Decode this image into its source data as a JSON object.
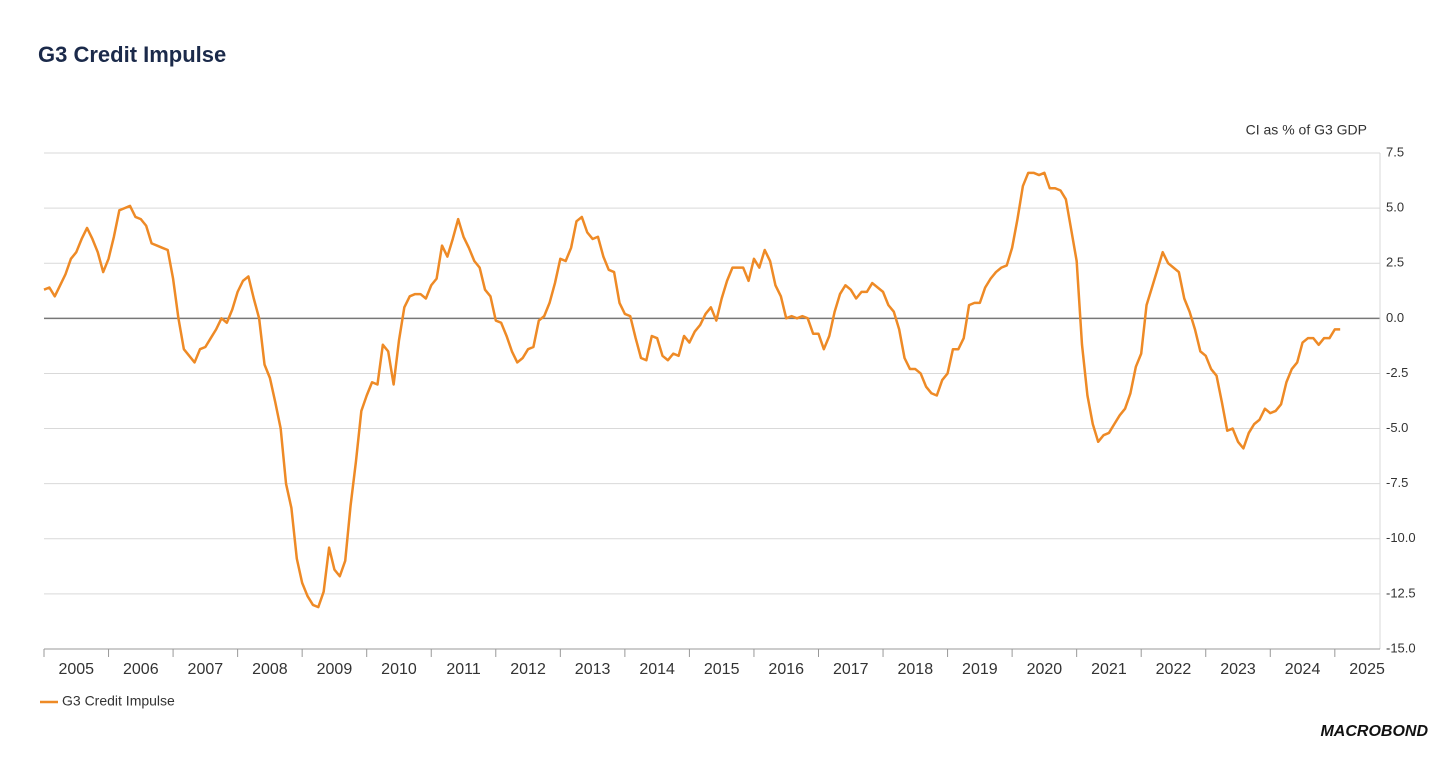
{
  "chart_data": {
    "type": "line",
    "title": "G3 Credit Impulse",
    "y_axis_label": "CI as % of G3 GDP",
    "brand": "MACROBOND",
    "xlim": [
      2005,
      2025.7
    ],
    "ylim": [
      -15,
      7.5
    ],
    "yticks": [
      7.5,
      {
        "value": 5,
        "label": "5.0"
      },
      2.5,
      {
        "value": 0,
        "label": "0.0"
      },
      -2.5,
      {
        "value": -5,
        "label": "-5.0"
      },
      -7.5,
      {
        "value": -10,
        "label": "-10.0"
      },
      -12.5,
      {
        "value": -15,
        "label": "-15.0"
      }
    ],
    "xticks": [
      {
        "value": 2005.5,
        "label": "2005"
      },
      {
        "value": 2006.5,
        "label": "2006"
      },
      {
        "value": 2007.5,
        "label": "2007"
      },
      {
        "value": 2008.5,
        "label": "2008"
      },
      {
        "value": 2009.5,
        "label": "2009"
      },
      {
        "value": 2010.5,
        "label": "2010"
      },
      {
        "value": 2011.5,
        "label": "2011"
      },
      {
        "value": 2012.5,
        "label": "2012"
      },
      {
        "value": 2013.5,
        "label": "2013"
      },
      {
        "value": 2014.5,
        "label": "2014"
      },
      {
        "value": 2015.5,
        "label": "2015"
      },
      {
        "value": 2016.5,
        "label": "2016"
      },
      {
        "value": 2017.5,
        "label": "2017"
      },
      {
        "value": 2018.5,
        "label": "2018"
      },
      {
        "value": 2019.5,
        "label": "2019"
      },
      {
        "value": 2020.5,
        "label": "2020"
      },
      {
        "value": 2021.5,
        "label": "2021"
      },
      {
        "value": 2022.5,
        "label": "2022"
      },
      {
        "value": 2023.5,
        "label": "2023"
      },
      {
        "value": 2024.5,
        "label": "2024"
      },
      {
        "value": 2025.5,
        "label": "2025"
      }
    ],
    "grid": true,
    "legend": "bottom-left",
    "x": [
      2005,
      2005.083,
      2005.167,
      2005.25,
      2005.333,
      2005.417,
      2005.5,
      2005.583,
      2005.667,
      2005.75,
      2005.833,
      2005.917,
      2006,
      2006.083,
      2006.167,
      2006.25,
      2006.333,
      2006.417,
      2006.5,
      2006.583,
      2006.667,
      2006.75,
      2006.833,
      2006.917,
      2007,
      2007.083,
      2007.167,
      2007.25,
      2007.333,
      2007.417,
      2007.5,
      2007.583,
      2007.667,
      2007.75,
      2007.833,
      2007.917,
      2008,
      2008.083,
      2008.167,
      2008.25,
      2008.333,
      2008.417,
      2008.5,
      2008.583,
      2008.667,
      2008.75,
      2008.833,
      2008.917,
      2009,
      2009.083,
      2009.167,
      2009.25,
      2009.333,
      2009.417,
      2009.5,
      2009.583,
      2009.667,
      2009.75,
      2009.833,
      2009.917,
      2010,
      2010.083,
      2010.167,
      2010.25,
      2010.333,
      2010.417,
      2010.5,
      2010.583,
      2010.667,
      2010.75,
      2010.833,
      2010.917,
      2011,
      2011.083,
      2011.167,
      2011.25,
      2011.333,
      2011.417,
      2011.5,
      2011.583,
      2011.667,
      2011.75,
      2011.833,
      2011.917,
      2012,
      2012.083,
      2012.167,
      2012.25,
      2012.333,
      2012.417,
      2012.5,
      2012.583,
      2012.667,
      2012.75,
      2012.833,
      2012.917,
      2013,
      2013.083,
      2013.167,
      2013.25,
      2013.333,
      2013.417,
      2013.5,
      2013.583,
      2013.667,
      2013.75,
      2013.833,
      2013.917,
      2014,
      2014.083,
      2014.167,
      2014.25,
      2014.333,
      2014.417,
      2014.5,
      2014.583,
      2014.667,
      2014.75,
      2014.833,
      2014.917,
      2015,
      2015.083,
      2015.167,
      2015.25,
      2015.333,
      2015.417,
      2015.5,
      2015.583,
      2015.667,
      2015.75,
      2015.833,
      2015.917,
      2016,
      2016.083,
      2016.167,
      2016.25,
      2016.333,
      2016.417,
      2016.5,
      2016.583,
      2016.667,
      2016.75,
      2016.833,
      2016.917,
      2017,
      2017.083,
      2017.167,
      2017.25,
      2017.333,
      2017.417,
      2017.5,
      2017.583,
      2017.667,
      2017.75,
      2017.833,
      2017.917,
      2018,
      2018.083,
      2018.167,
      2018.25,
      2018.333,
      2018.417,
      2018.5,
      2018.583,
      2018.667,
      2018.75,
      2018.833,
      2018.917,
      2019,
      2019.083,
      2019.167,
      2019.25,
      2019.333,
      2019.417,
      2019.5,
      2019.583,
      2019.667,
      2019.75,
      2019.833,
      2019.917,
      2020,
      2020.083,
      2020.167,
      2020.25,
      2020.333,
      2020.417,
      2020.5,
      2020.583,
      2020.667,
      2020.75,
      2020.833,
      2020.917,
      2021,
      2021.083,
      2021.167,
      2021.25,
      2021.333,
      2021.417,
      2021.5,
      2021.583,
      2021.667,
      2021.75,
      2021.833,
      2021.917,
      2022,
      2022.083,
      2022.167,
      2022.25,
      2022.333,
      2022.417,
      2022.5,
      2022.583,
      2022.667,
      2022.75,
      2022.833,
      2022.917,
      2023,
      2023.083,
      2023.167,
      2023.25,
      2023.333,
      2023.417,
      2023.5,
      2023.583,
      2023.667,
      2023.75,
      2023.833,
      2023.917,
      2024,
      2024.083,
      2024.167,
      2024.25,
      2024.333,
      2024.417,
      2024.5,
      2024.583,
      2024.667,
      2024.75,
      2024.833,
      2024.917,
      2025,
      2025.083
    ],
    "series": [
      {
        "name": "G3 Credit Impulse",
        "color": "#ee8a26",
        "values": [
          1.3,
          1.4,
          1.0,
          1.5,
          2.0,
          2.7,
          3.0,
          3.6,
          4.1,
          3.6,
          3.0,
          2.1,
          2.7,
          3.7,
          4.9,
          5.0,
          5.1,
          4.6,
          4.5,
          4.2,
          3.4,
          3.3,
          3.2,
          3.1,
          1.8,
          0.0,
          -1.4,
          -1.7,
          -2.0,
          -1.4,
          -1.3,
          -0.9,
          -0.5,
          0.0,
          -0.2,
          0.4,
          1.2,
          1.7,
          1.9,
          0.9,
          0.0,
          -2.1,
          -2.7,
          -3.8,
          -5.0,
          -7.5,
          -8.6,
          -10.9,
          -12.0,
          -12.6,
          -13.0,
          -13.1,
          -12.4,
          -10.4,
          -11.4,
          -11.7,
          -11.0,
          -8.5,
          -6.5,
          -4.2,
          -3.5,
          -2.9,
          -3.0,
          -1.2,
          -1.5,
          -3.0,
          -1.0,
          0.5,
          1.0,
          1.1,
          1.1,
          0.9,
          1.5,
          1.8,
          3.3,
          2.8,
          3.6,
          4.5,
          3.7,
          3.2,
          2.6,
          2.3,
          1.3,
          1.0,
          -0.1,
          -0.2,
          -0.8,
          -1.5,
          -2.0,
          -1.8,
          -1.4,
          -1.3,
          -0.1,
          0.1,
          0.7,
          1.6,
          2.7,
          2.6,
          3.2,
          4.4,
          4.6,
          3.9,
          3.6,
          3.7,
          2.8,
          2.2,
          2.1,
          0.7,
          0.2,
          0.1,
          -0.9,
          -1.8,
          -1.9,
          -0.8,
          -0.9,
          -1.7,
          -1.9,
          -1.6,
          -1.7,
          -0.8,
          -1.1,
          -0.6,
          -0.3,
          0.2,
          0.5,
          -0.1,
          0.9,
          1.7,
          2.3,
          2.3,
          2.3,
          1.7,
          2.7,
          2.3,
          3.1,
          2.6,
          1.5,
          1.0,
          0.0,
          0.1,
          0.0,
          0.1,
          0.0,
          -0.7,
          -0.7,
          -1.4,
          -0.8,
          0.3,
          1.1,
          1.5,
          1.3,
          0.9,
          1.2,
          1.2,
          1.6,
          1.4,
          1.2,
          0.6,
          0.3,
          -0.5,
          -1.8,
          -2.3,
          -2.3,
          -2.5,
          -3.1,
          -3.4,
          -3.5,
          -2.8,
          -2.5,
          -1.4,
          -1.4,
          -0.9,
          0.6,
          0.7,
          0.7,
          1.4,
          1.8,
          2.1,
          2.3,
          2.4,
          3.2,
          4.5,
          6.0,
          6.6,
          6.6,
          6.5,
          6.6,
          5.9,
          5.9,
          5.8,
          5.4,
          4.0,
          2.6,
          -1.2,
          -3.5,
          -4.8,
          -5.6,
          -5.3,
          -5.2,
          -4.8,
          -4.4,
          -4.1,
          -3.4,
          -2.2,
          -1.6,
          0.6,
          1.4,
          2.2,
          3.0,
          2.5,
          2.3,
          2.1,
          0.9,
          0.3,
          -0.5,
          -1.5,
          -1.7,
          -2.3,
          -2.6,
          -3.8,
          -5.1,
          -5.0,
          -5.6,
          -5.9,
          -5.2,
          -4.8,
          -4.6,
          -4.1,
          -4.3,
          -4.2,
          -3.9,
          -2.9,
          -2.3,
          -2.0,
          -1.1,
          -0.9,
          -0.9,
          -1.2,
          -0.9,
          -0.9,
          -0.5,
          -0.5
        ]
      }
    ]
  }
}
